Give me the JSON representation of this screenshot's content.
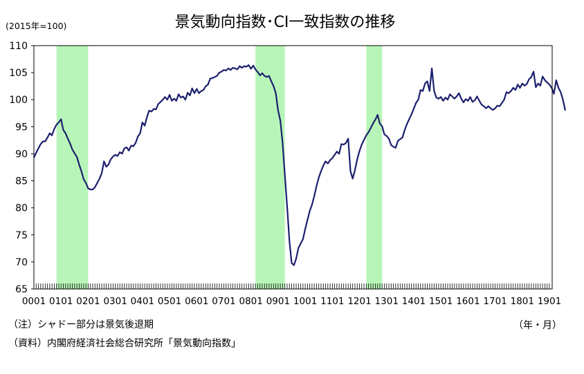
{
  "chart_data": {
    "type": "line",
    "title": "景気動向指数･CI一致指数の推移",
    "unit_label": "(2015年=100)",
    "x_unit_label": "（年・月）",
    "ylim": [
      65,
      110
    ],
    "yticks": [
      65,
      70,
      75,
      80,
      85,
      90,
      95,
      100,
      105,
      110
    ],
    "x_ticks": [
      "0001",
      "0101",
      "0201",
      "0301",
      "0401",
      "0501",
      "0601",
      "0701",
      "0801",
      "0901",
      "1001",
      "1101",
      "1201",
      "1301",
      "1401",
      "1501",
      "1601",
      "1701",
      "1801",
      "1901"
    ],
    "x_start": "2000-01",
    "x_end": "2019-01",
    "grid": false,
    "line_color": "#1b1f6e",
    "shade_color": "#b8f5b8",
    "recession_periods": [
      [
        "2000-11",
        "2002-01"
      ],
      [
        "2008-03",
        "2009-04"
      ],
      [
        "2012-04",
        "2012-11"
      ]
    ],
    "series": [
      {
        "values": [
          [
            "2000-01",
            89.3
          ],
          [
            "2000-02",
            90.2
          ],
          [
            "2000-03",
            91.0
          ],
          [
            "2000-04",
            91.8
          ],
          [
            "2000-05",
            92.3
          ],
          [
            "2000-06",
            92.3
          ],
          [
            "2000-07",
            93.0
          ],
          [
            "2000-08",
            93.8
          ],
          [
            "2000-09",
            93.4
          ],
          [
            "2000-10",
            94.6
          ],
          [
            "2000-11",
            95.4
          ],
          [
            "2000-12",
            95.8
          ],
          [
            "2001-01",
            96.4
          ],
          [
            "2001-02",
            94.4
          ],
          [
            "2001-03",
            93.8
          ],
          [
            "2001-04",
            92.8
          ],
          [
            "2001-05",
            91.9
          ],
          [
            "2001-06",
            90.8
          ],
          [
            "2001-07",
            90.1
          ],
          [
            "2001-08",
            89.4
          ],
          [
            "2001-09",
            88.0
          ],
          [
            "2001-10",
            86.8
          ],
          [
            "2001-11",
            85.3
          ],
          [
            "2001-12",
            84.6
          ],
          [
            "2002-01",
            83.6
          ],
          [
            "2002-02",
            83.4
          ],
          [
            "2002-03",
            83.4
          ],
          [
            "2002-04",
            83.8
          ],
          [
            "2002-05",
            84.6
          ],
          [
            "2002-06",
            85.4
          ],
          [
            "2002-07",
            86.4
          ],
          [
            "2002-08",
            88.6
          ],
          [
            "2002-09",
            87.6
          ],
          [
            "2002-10",
            88.0
          ],
          [
            "2002-11",
            89.0
          ],
          [
            "2002-12",
            89.5
          ],
          [
            "2003-01",
            89.8
          ],
          [
            "2003-02",
            89.6
          ],
          [
            "2003-03",
            90.3
          ],
          [
            "2003-04",
            90.0
          ],
          [
            "2003-05",
            91.0
          ],
          [
            "2003-06",
            91.2
          ],
          [
            "2003-07",
            90.6
          ],
          [
            "2003-08",
            91.5
          ],
          [
            "2003-09",
            91.4
          ],
          [
            "2003-10",
            92.0
          ],
          [
            "2003-11",
            93.2
          ],
          [
            "2003-12",
            93.8
          ],
          [
            "2004-01",
            95.8
          ],
          [
            "2004-02",
            95.2
          ],
          [
            "2004-03",
            96.8
          ],
          [
            "2004-04",
            98.0
          ],
          [
            "2004-05",
            97.8
          ],
          [
            "2004-06",
            98.3
          ],
          [
            "2004-07",
            98.2
          ],
          [
            "2004-08",
            99.2
          ],
          [
            "2004-09",
            99.6
          ],
          [
            "2004-10",
            100.0
          ],
          [
            "2004-11",
            100.5
          ],
          [
            "2004-12",
            100.0
          ],
          [
            "2005-01",
            100.9
          ],
          [
            "2005-02",
            99.8
          ],
          [
            "2005-03",
            100.2
          ],
          [
            "2005-04",
            99.8
          ],
          [
            "2005-05",
            101.0
          ],
          [
            "2005-06",
            100.4
          ],
          [
            "2005-07",
            100.6
          ],
          [
            "2005-08",
            100.0
          ],
          [
            "2005-09",
            101.3
          ],
          [
            "2005-10",
            100.8
          ],
          [
            "2005-11",
            102.1
          ],
          [
            "2005-12",
            101.2
          ],
          [
            "2006-01",
            102.0
          ],
          [
            "2006-02",
            101.2
          ],
          [
            "2006-03",
            101.6
          ],
          [
            "2006-04",
            101.8
          ],
          [
            "2006-05",
            102.5
          ],
          [
            "2006-06",
            102.8
          ],
          [
            "2006-07",
            103.9
          ],
          [
            "2006-08",
            104.0
          ],
          [
            "2006-09",
            104.2
          ],
          [
            "2006-10",
            104.4
          ],
          [
            "2006-11",
            105.0
          ],
          [
            "2006-12",
            105.2
          ],
          [
            "2007-01",
            105.5
          ],
          [
            "2007-02",
            105.4
          ],
          [
            "2007-03",
            105.8
          ],
          [
            "2007-04",
            105.5
          ],
          [
            "2007-05",
            105.9
          ],
          [
            "2007-06",
            105.8
          ],
          [
            "2007-07",
            105.6
          ],
          [
            "2007-08",
            106.2
          ],
          [
            "2007-09",
            105.9
          ],
          [
            "2007-10",
            106.2
          ],
          [
            "2007-11",
            106.1
          ],
          [
            "2007-12",
            106.4
          ],
          [
            "2008-01",
            105.7
          ],
          [
            "2008-02",
            106.3
          ],
          [
            "2008-03",
            105.6
          ],
          [
            "2008-04",
            105.1
          ],
          [
            "2008-05",
            104.5
          ],
          [
            "2008-06",
            104.9
          ],
          [
            "2008-07",
            104.4
          ],
          [
            "2008-08",
            104.2
          ],
          [
            "2008-09",
            104.4
          ],
          [
            "2008-10",
            103.4
          ],
          [
            "2008-11",
            102.5
          ],
          [
            "2008-12",
            101.2
          ],
          [
            "2009-01",
            98.0
          ],
          [
            "2009-02",
            96.1
          ],
          [
            "2009-03",
            92.0
          ],
          [
            "2009-04",
            86.0
          ],
          [
            "2009-05",
            80.2
          ],
          [
            "2009-06",
            74.0
          ],
          [
            "2009-07",
            69.8
          ],
          [
            "2009-08",
            69.4
          ],
          [
            "2009-09",
            70.6
          ],
          [
            "2009-10",
            72.6
          ],
          [
            "2009-11",
            73.4
          ],
          [
            "2009-12",
            74.2
          ],
          [
            "2010-01",
            76.1
          ],
          [
            "2010-02",
            77.8
          ],
          [
            "2010-03",
            79.4
          ],
          [
            "2010-04",
            80.6
          ],
          [
            "2010-05",
            82.2
          ],
          [
            "2010-06",
            84.0
          ],
          [
            "2010-07",
            85.6
          ],
          [
            "2010-08",
            86.8
          ],
          [
            "2010-09",
            87.8
          ],
          [
            "2010-10",
            88.6
          ],
          [
            "2010-11",
            88.2
          ],
          [
            "2010-12",
            88.8
          ],
          [
            "2011-01",
            89.2
          ],
          [
            "2011-02",
            89.8
          ],
          [
            "2011-03",
            90.4
          ],
          [
            "2011-04",
            90.0
          ],
          [
            "2011-05",
            91.8
          ],
          [
            "2011-06",
            91.7
          ],
          [
            "2011-07",
            92.0
          ],
          [
            "2011-08",
            92.8
          ],
          [
            "2011-09",
            86.8
          ],
          [
            "2011-10",
            85.4
          ],
          [
            "2011-11",
            87.0
          ],
          [
            "2011-12",
            89.0
          ],
          [
            "2012-01",
            90.5
          ],
          [
            "2012-02",
            91.7
          ],
          [
            "2012-03",
            92.6
          ],
          [
            "2012-04",
            93.4
          ],
          [
            "2012-05",
            94.0
          ],
          [
            "2012-06",
            94.8
          ],
          [
            "2012-07",
            95.6
          ],
          [
            "2012-08",
            96.3
          ],
          [
            "2012-09",
            97.2
          ],
          [
            "2012-10",
            95.6
          ],
          [
            "2012-11",
            95.1
          ],
          [
            "2012-12",
            93.6
          ],
          [
            "2013-01",
            93.3
          ],
          [
            "2013-02",
            92.8
          ],
          [
            "2013-03",
            91.6
          ],
          [
            "2013-04",
            91.3
          ],
          [
            "2013-05",
            91.1
          ],
          [
            "2013-06",
            92.4
          ],
          [
            "2013-07",
            92.7
          ],
          [
            "2013-08",
            93.0
          ],
          [
            "2013-09",
            94.4
          ],
          [
            "2013-10",
            95.5
          ],
          [
            "2013-11",
            96.4
          ],
          [
            "2013-12",
            97.3
          ],
          [
            "2014-01",
            98.3
          ],
          [
            "2014-02",
            99.4
          ],
          [
            "2014-03",
            100.0
          ],
          [
            "2014-04",
            101.8
          ],
          [
            "2014-05",
            101.6
          ],
          [
            "2014-06",
            103.0
          ],
          [
            "2014-07",
            103.4
          ],
          [
            "2014-08",
            101.6
          ],
          [
            "2014-09",
            105.8
          ],
          [
            "2014-10",
            101.6
          ],
          [
            "2014-11",
            100.4
          ],
          [
            "2014-12",
            100.2
          ],
          [
            "2015-01",
            100.5
          ],
          [
            "2015-02",
            99.8
          ],
          [
            "2015-03",
            100.4
          ],
          [
            "2015-04",
            100.0
          ],
          [
            "2015-05",
            101.0
          ],
          [
            "2015-06",
            100.6
          ],
          [
            "2015-07",
            100.2
          ],
          [
            "2015-08",
            100.6
          ],
          [
            "2015-09",
            101.2
          ],
          [
            "2015-10",
            100.2
          ],
          [
            "2015-11",
            99.5
          ],
          [
            "2015-12",
            100.1
          ],
          [
            "2016-01",
            99.8
          ],
          [
            "2016-02",
            100.5
          ],
          [
            "2016-03",
            99.6
          ],
          [
            "2016-04",
            99.9
          ],
          [
            "2016-05",
            100.6
          ],
          [
            "2016-06",
            99.8
          ],
          [
            "2016-07",
            99.1
          ],
          [
            "2016-08",
            98.8
          ],
          [
            "2016-09",
            98.4
          ],
          [
            "2016-10",
            98.8
          ],
          [
            "2016-11",
            98.4
          ],
          [
            "2016-12",
            98.1
          ],
          [
            "2017-01",
            98.4
          ],
          [
            "2017-02",
            98.9
          ],
          [
            "2017-03",
            98.8
          ],
          [
            "2017-04",
            99.4
          ],
          [
            "2017-05",
            100.0
          ],
          [
            "2017-06",
            101.4
          ],
          [
            "2017-07",
            101.2
          ],
          [
            "2017-08",
            101.6
          ],
          [
            "2017-09",
            102.2
          ],
          [
            "2017-10",
            101.8
          ],
          [
            "2017-11",
            102.8
          ],
          [
            "2017-12",
            102.2
          ],
          [
            "2018-01",
            103.0
          ],
          [
            "2018-02",
            102.6
          ],
          [
            "2018-03",
            102.9
          ],
          [
            "2018-04",
            103.8
          ],
          [
            "2018-05",
            104.2
          ],
          [
            "2018-06",
            105.2
          ],
          [
            "2018-07",
            102.3
          ],
          [
            "2018-08",
            103.0
          ],
          [
            "2018-09",
            102.6
          ],
          [
            "2018-10",
            104.3
          ],
          [
            "2018-11",
            103.6
          ],
          [
            "2018-12",
            103.2
          ],
          [
            "2019-01",
            102.8
          ],
          [
            "2019-02",
            102.2
          ],
          [
            "2019-03",
            101.1
          ],
          [
            "2019-04",
            103.6
          ],
          [
            "2019-05",
            102.2
          ],
          [
            "2019-06",
            101.4
          ],
          [
            "2019-07",
            100.0
          ],
          [
            "2019-08",
            98.0
          ]
        ]
      }
    ]
  },
  "notes": {
    "shade": "（注）シャドー部分は景気後退期",
    "source": "（資料）内閣府経済社会総合研究所「景気動向指数」"
  }
}
